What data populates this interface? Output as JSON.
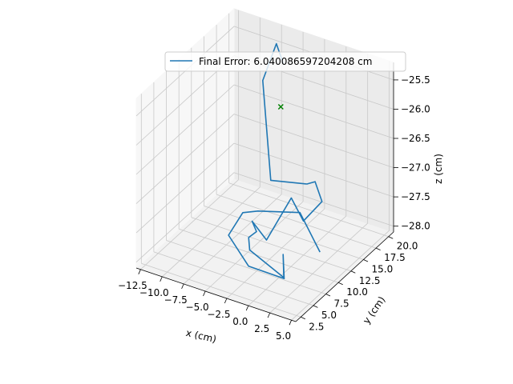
{
  "chart_data": {
    "type": "line3d",
    "legend": {
      "label": "Final Error: 6.040086597204208 cm",
      "placement": "top"
    },
    "axes": {
      "x": {
        "label": "x (cm)",
        "ticks": [
          -12.5,
          -10.0,
          -7.5,
          -5.0,
          -2.5,
          0.0,
          2.5,
          5.0
        ],
        "tick_labels": [
          "−12.5",
          "−10.0",
          "−7.5",
          "−5.0",
          "−2.5",
          "0.0",
          "2.5",
          "5.0"
        ]
      },
      "y": {
        "label": "y (cm)",
        "ticks": [
          2.5,
          5.0,
          7.5,
          10.0,
          12.5,
          15.0,
          17.5,
          20.0
        ],
        "tick_labels": [
          "2.5",
          "5.0",
          "7.5",
          "10.0",
          "12.5",
          "15.0",
          "17.5",
          "20.0"
        ]
      },
      "z": {
        "label": "z (cm)",
        "ticks": [
          -28.0,
          -27.5,
          -27.0,
          -26.5,
          -26.0,
          -25.5
        ],
        "tick_labels": [
          "−28.0",
          "−27.5",
          "−27.0",
          "−26.5",
          "−26.0",
          "−25.5"
        ]
      }
    },
    "series": [
      {
        "name": "Final Error: 6.040086597204208 cm",
        "color": "#1f77b4",
        "points": [
          [
            -7.0,
            20.5,
            -25.8
          ],
          [
            -7.8,
            20.5,
            -25.5
          ],
          [
            -8.8,
            19.5,
            -26.1
          ],
          [
            -7.0,
            18.0,
            -27.6
          ],
          [
            -2.5,
            17.5,
            -27.4
          ],
          [
            -0.4,
            15.5,
            -27.1
          ],
          [
            0.4,
            15.5,
            -27.4
          ],
          [
            -1.0,
            14.2,
            -27.7
          ],
          [
            -2.0,
            13.5,
            -27.3
          ],
          [
            -4.0,
            12.0,
            -28.0
          ],
          [
            -4.8,
            10.5,
            -27.6
          ],
          [
            -4.0,
            10.0,
            -27.7
          ],
          [
            -5.2,
            10.5,
            -27.9
          ],
          [
            -4.5,
            9.5,
            -28.0
          ],
          [
            1.5,
            6.0,
            -27.9
          ],
          [
            2.0,
            5.0,
            -27.4
          ],
          [
            2.7,
            4.0,
            -27.7
          ],
          [
            -2.0,
            5.0,
            -27.8
          ],
          [
            -5.5,
            7.0,
            -27.6
          ],
          [
            -5.3,
            9.5,
            -27.4
          ],
          [
            -4.7,
            11.5,
            -27.5
          ],
          [
            -1.0,
            13.5,
            -27.5
          ],
          [
            2.2,
            12.0,
            -27.9
          ]
        ]
      }
    ],
    "marker": {
      "symbol": "x",
      "color": "#008000",
      "point": [
        -7.0,
        20.0,
        -26.5
      ]
    },
    "xlim": [
      -13.0,
      5.5
    ],
    "ylim": [
      1.5,
      21.0
    ],
    "zlim": [
      -28.1,
      -25.2
    ],
    "grid": true
  }
}
